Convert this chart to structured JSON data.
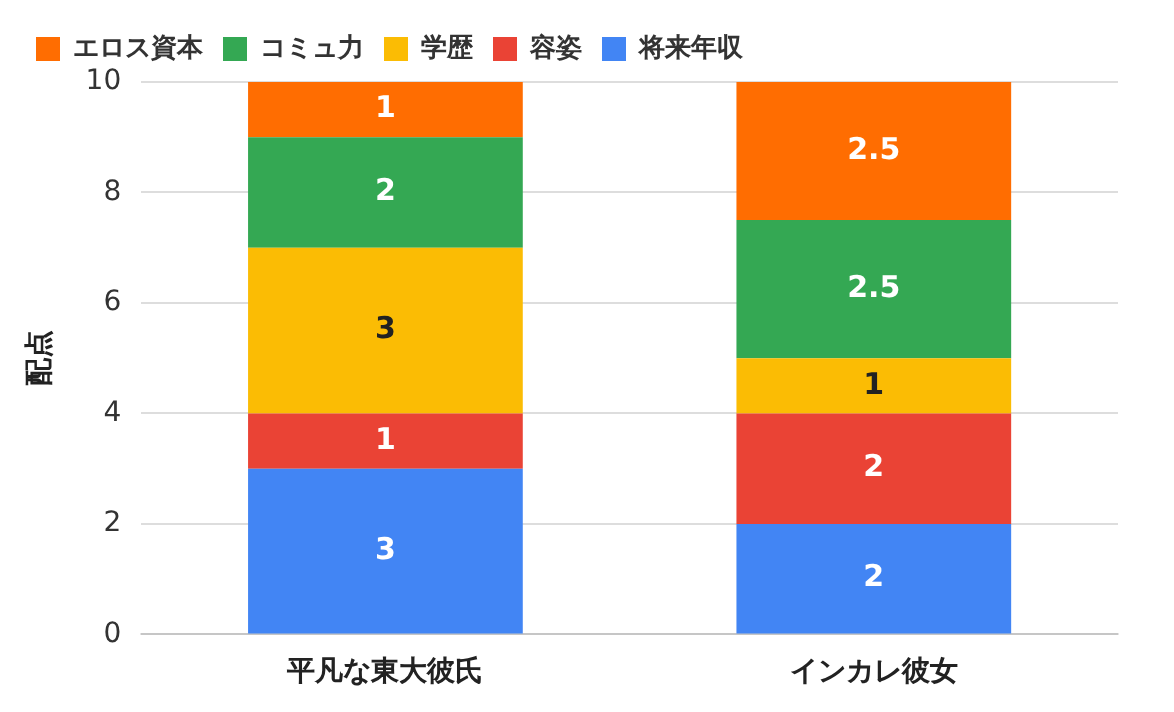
{
  "chart_data": {
    "type": "bar",
    "ylabel": "配点",
    "categories": [
      "平凡な東大彼氏",
      "インカレ彼女"
    ],
    "series": [
      {
        "name": "将来年収",
        "color": "#4285f4",
        "values": [
          3,
          2
        ]
      },
      {
        "name": "容姿",
        "color": "#ea4335",
        "values": [
          1,
          2
        ]
      },
      {
        "name": "学歴",
        "color": "#fbbc04",
        "values": [
          3,
          1
        ]
      },
      {
        "name": "コミュ力",
        "color": "#34a853",
        "values": [
          2,
          2.5
        ]
      },
      {
        "name": "エロス資本",
        "color": "#ff6d01",
        "values": [
          1,
          2.5
        ]
      }
    ],
    "stacked": true,
    "ylim": [
      0,
      10
    ],
    "yticks": [
      0,
      2,
      4,
      6,
      8,
      10
    ],
    "grid": "y",
    "legend": "top",
    "data_labels": true
  }
}
